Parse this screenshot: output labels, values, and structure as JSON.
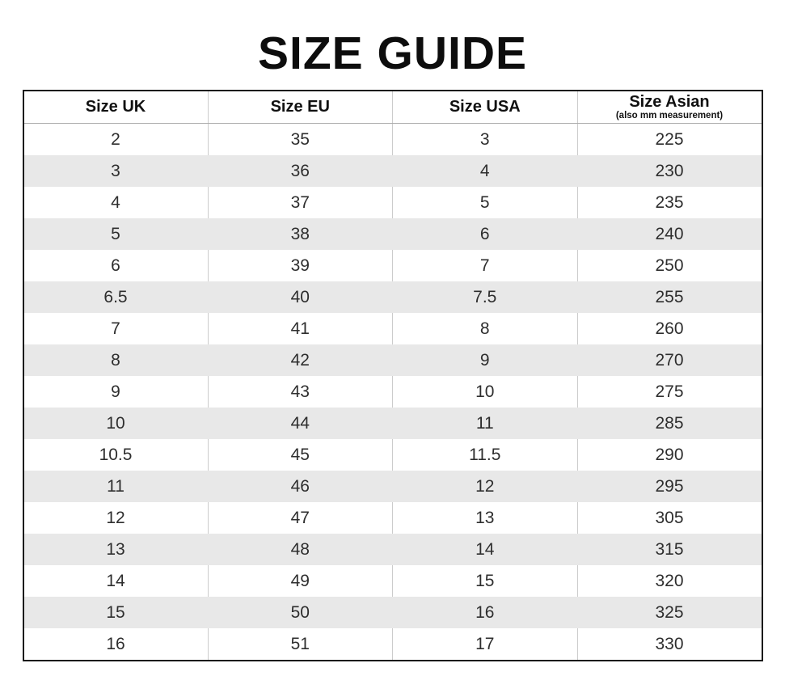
{
  "page": {
    "title": "SIZE GUIDE"
  },
  "colors": {
    "page_bg": "#ffffff",
    "title_text": "#0d0d0d",
    "header_text": "#111111",
    "cell_text": "#2e2e2e",
    "stripe": "#e8e8e8",
    "border_outer": "#1a1a1a",
    "border_inner": "#cccccc",
    "header_rule": "#ababab"
  },
  "chart_data": {
    "type": "table",
    "title": "SIZE GUIDE",
    "layout": {
      "striped": true,
      "stripe_pattern": "alternating white / light-gray starting white",
      "column_widths": "4 equal columns",
      "grid": "outer black border, light-gray vertical separators on white rows and header only"
    },
    "columns": [
      {
        "label": "Size UK",
        "sublabel": ""
      },
      {
        "label": "Size EU",
        "sublabel": ""
      },
      {
        "label": "Size USA",
        "sublabel": ""
      },
      {
        "label": "Size Asian",
        "sublabel": "(also mm measurement)"
      }
    ],
    "rows": [
      [
        "2",
        "35",
        "3",
        "225"
      ],
      [
        "3",
        "36",
        "4",
        "230"
      ],
      [
        "4",
        "37",
        "5",
        "235"
      ],
      [
        "5",
        "38",
        "6",
        "240"
      ],
      [
        "6",
        "39",
        "7",
        "250"
      ],
      [
        "6.5",
        "40",
        "7.5",
        "255"
      ],
      [
        "7",
        "41",
        "8",
        "260"
      ],
      [
        "8",
        "42",
        "9",
        "270"
      ],
      [
        "9",
        "43",
        "10",
        "275"
      ],
      [
        "10",
        "44",
        "11",
        "285"
      ],
      [
        "10.5",
        "45",
        "11.5",
        "290"
      ],
      [
        "11",
        "46",
        "12",
        "295"
      ],
      [
        "12",
        "47",
        "13",
        "305"
      ],
      [
        "13",
        "48",
        "14",
        "315"
      ],
      [
        "14",
        "49",
        "15",
        "320"
      ],
      [
        "15",
        "50",
        "16",
        "325"
      ],
      [
        "16",
        "51",
        "17",
        "330"
      ]
    ]
  }
}
